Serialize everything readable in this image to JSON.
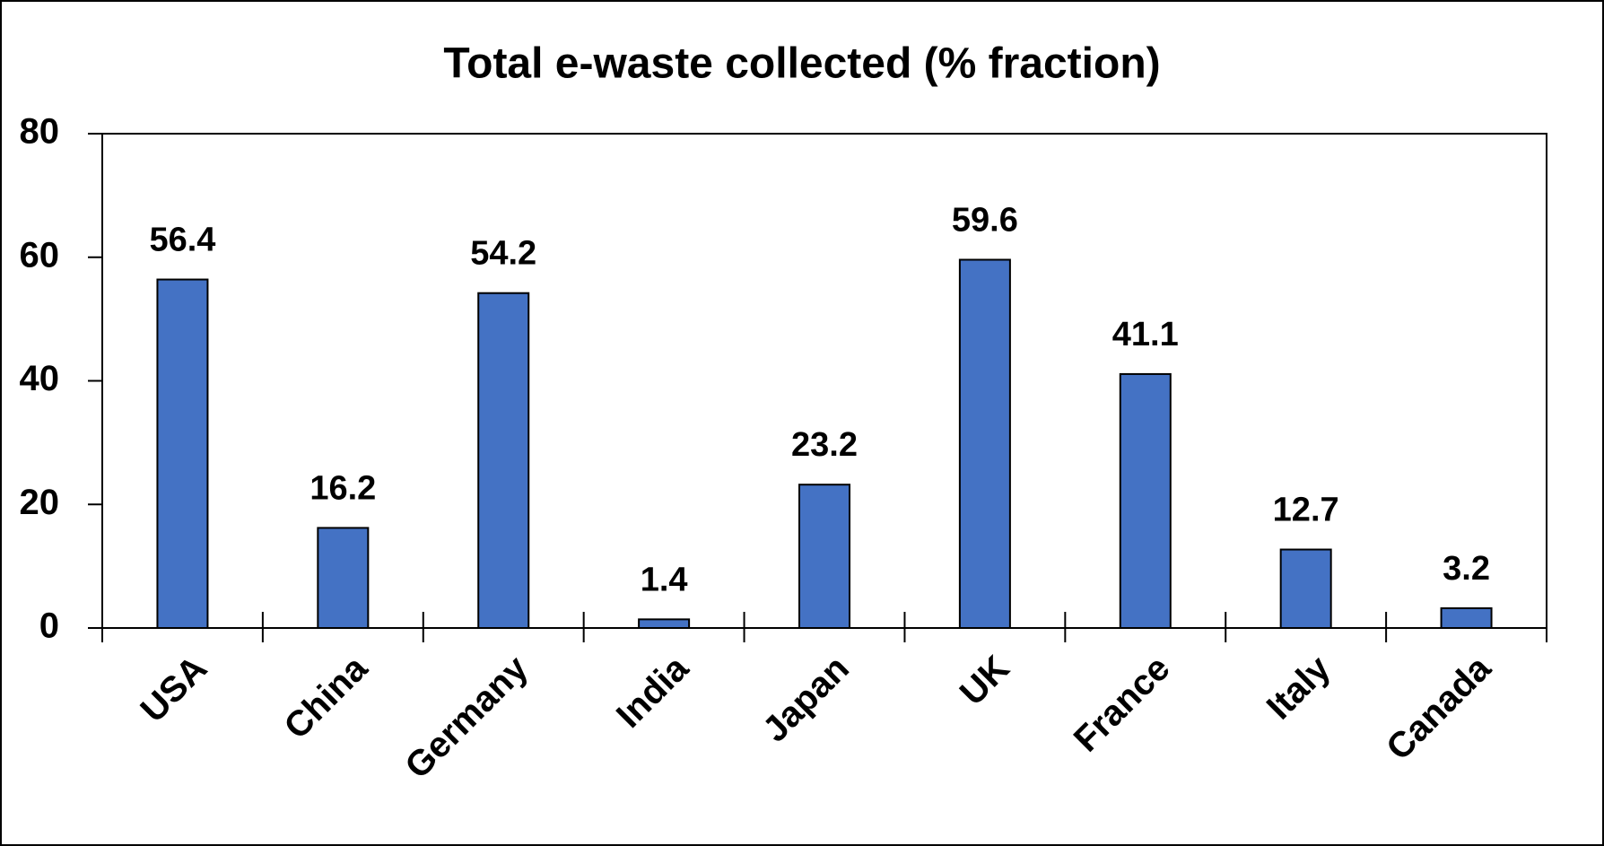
{
  "chart_data": {
    "type": "bar",
    "title": "Total e-waste collected (% fraction)",
    "categories": [
      "USA",
      "China",
      "Germany",
      "India",
      "Japan",
      "UK",
      "France",
      "Italy",
      "Canada"
    ],
    "values": [
      56.4,
      16.2,
      54.2,
      1.4,
      23.2,
      59.6,
      41.1,
      12.7,
      3.2
    ],
    "color": "#4472c4",
    "ylim": [
      0,
      80
    ],
    "yticks": [
      0,
      20,
      40,
      60,
      80
    ],
    "grid": false
  }
}
